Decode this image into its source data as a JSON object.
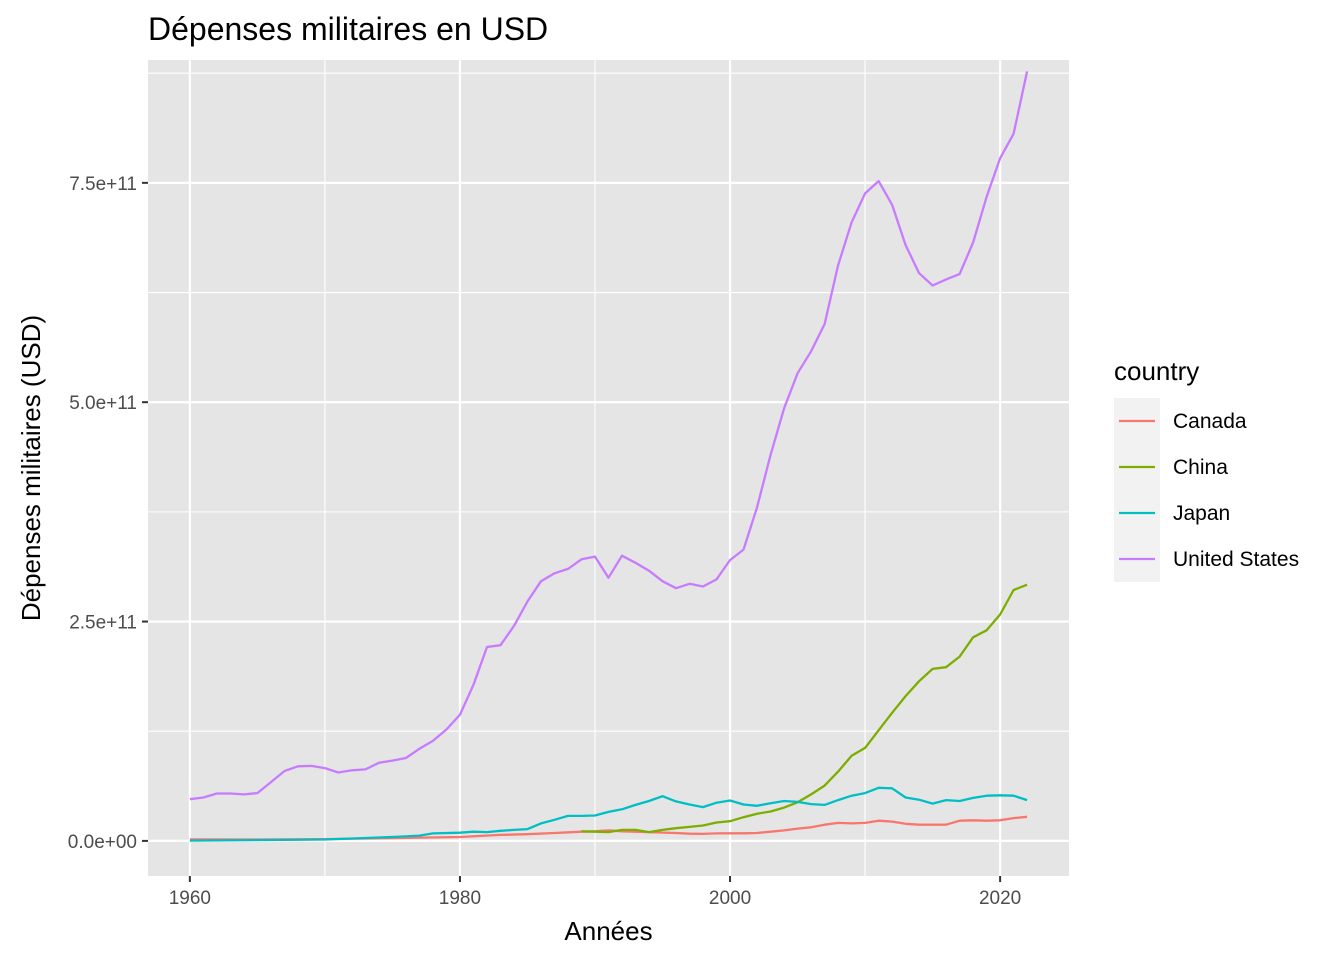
{
  "chart_data": {
    "type": "line",
    "title": "Dépenses militaires en USD",
    "xlabel": "Années",
    "ylabel": "Dépenses militaires (USD)",
    "xlim": [
      1956.9,
      2025.1
    ],
    "ylim": [
      -40000000000,
      890000000000
    ],
    "x_ticks": [
      1960,
      1980,
      2000,
      2020
    ],
    "x_tick_labels": [
      "1960",
      "1980",
      "2000",
      "2020"
    ],
    "x_minor_ticks": [
      1970,
      1990,
      2010
    ],
    "y_ticks": [
      0,
      250000000000,
      500000000000,
      750000000000
    ],
    "y_tick_labels": [
      "0.0e+00",
      "2.5e+11",
      "5.0e+11",
      "7.5e+11"
    ],
    "y_minor_ticks": [
      125000000000,
      375000000000,
      625000000000,
      875000000000
    ],
    "grid": true,
    "legend_title": "country",
    "legend_position": "right",
    "background": "#e5e5e5",
    "series": [
      {
        "name": "Canada",
        "color": "#f8766d",
        "points": [
          [
            1960,
            1700000000.0
          ],
          [
            1965,
            1600000000.0
          ],
          [
            1970,
            2000000000.0
          ],
          [
            1975,
            3200000000.0
          ],
          [
            1980,
            4400000000.0
          ],
          [
            1983,
            6800000000.0
          ],
          [
            1985,
            7600000000.0
          ],
          [
            1987,
            9000000000.0
          ],
          [
            1989,
            10500000000.0
          ],
          [
            1990,
            11000000000.0
          ],
          [
            1991,
            12000000000.0
          ],
          [
            1992,
            11000000000.0
          ],
          [
            1993,
            10500000000.0
          ],
          [
            1994,
            10000000000.0
          ],
          [
            1995,
            9500000000.0
          ],
          [
            1996,
            9000000000.0
          ],
          [
            1997,
            8200000000.0
          ],
          [
            1998,
            8000000000.0
          ],
          [
            1999,
            8500000000.0
          ],
          [
            2000,
            8700000000.0
          ],
          [
            2001,
            8700000000.0
          ],
          [
            2002,
            9000000000.0
          ],
          [
            2003,
            10500000000.0
          ],
          [
            2004,
            12000000000.0
          ],
          [
            2005,
            14000000000.0
          ],
          [
            2006,
            15500000000.0
          ],
          [
            2007,
            18500000000.0
          ],
          [
            2008,
            20500000000.0
          ],
          [
            2009,
            20000000000.0
          ],
          [
            2010,
            20500000000.0
          ],
          [
            2011,
            23000000000.0
          ],
          [
            2012,
            22000000000.0
          ],
          [
            2013,
            19500000000.0
          ],
          [
            2014,
            18500000000.0
          ],
          [
            2015,
            18500000000.0
          ],
          [
            2016,
            18500000000.0
          ],
          [
            2017,
            23000000000.0
          ],
          [
            2018,
            23500000000.0
          ],
          [
            2019,
            23000000000.0
          ],
          [
            2020,
            23500000000.0
          ],
          [
            2021,
            26000000000.0
          ],
          [
            2022,
            27500000000.0
          ]
        ]
      },
      {
        "name": "China",
        "color": "#7cae00",
        "points": [
          [
            1989,
            11000000000.0
          ],
          [
            1990,
            10500000000.0
          ],
          [
            1991,
            10000000000.0
          ],
          [
            1992,
            12500000000.0
          ],
          [
            1993,
            12500000000.0
          ],
          [
            1994,
            10000000000.0
          ],
          [
            1995,
            12500000000.0
          ],
          [
            1996,
            14500000000.0
          ],
          [
            1997,
            16000000000.0
          ],
          [
            1998,
            17500000000.0
          ],
          [
            1999,
            21000000000.0
          ],
          [
            2000,
            22500000000.0
          ],
          [
            2001,
            27000000000.0
          ],
          [
            2002,
            31000000000.0
          ],
          [
            2003,
            33500000000.0
          ],
          [
            2004,
            38000000000.0
          ],
          [
            2005,
            44000000000.0
          ],
          [
            2006,
            53000000000.0
          ],
          [
            2007,
            63000000000.0
          ],
          [
            2008,
            79000000000.0
          ],
          [
            2009,
            97000000000.0
          ],
          [
            2010,
            106000000000.0
          ],
          [
            2011,
            126000000000.0
          ],
          [
            2012,
            146000000000.0
          ],
          [
            2013,
            165000000000.0
          ],
          [
            2014,
            182000000000.0
          ],
          [
            2015,
            196000000000.0
          ],
          [
            2016,
            198000000000.0
          ],
          [
            2017,
            210000000000.0
          ],
          [
            2018,
            232000000000.0
          ],
          [
            2019,
            240000000000.0
          ],
          [
            2020,
            258000000000.0
          ],
          [
            2021,
            286000000000.0
          ],
          [
            2022,
            292000000000.0
          ]
        ]
      },
      {
        "name": "Japan",
        "color": "#00bfc4",
        "points": [
          [
            1960,
            400000000.0
          ],
          [
            1965,
            900000000.0
          ],
          [
            1970,
            1600000000.0
          ],
          [
            1975,
            4500000000.0
          ],
          [
            1977,
            6000000000.0
          ],
          [
            1978,
            8500000000.0
          ],
          [
            1980,
            9300000000.0
          ],
          [
            1981,
            10500000000.0
          ],
          [
            1982,
            10000000000.0
          ],
          [
            1983,
            11500000000.0
          ],
          [
            1984,
            12500000000.0
          ],
          [
            1985,
            13500000000.0
          ],
          [
            1986,
            20000000000.0
          ],
          [
            1987,
            24000000000.0
          ],
          [
            1988,
            28500000000.0
          ],
          [
            1989,
            28500000000.0
          ],
          [
            1990,
            29000000000.0
          ],
          [
            1991,
            33000000000.0
          ],
          [
            1992,
            36000000000.0
          ],
          [
            1993,
            41000000000.0
          ],
          [
            1994,
            45500000000.0
          ],
          [
            1995,
            51000000000.0
          ],
          [
            1996,
            45000000000.0
          ],
          [
            1997,
            41500000000.0
          ],
          [
            1998,
            38500000000.0
          ],
          [
            1999,
            43500000000.0
          ],
          [
            2000,
            46000000000.0
          ],
          [
            2001,
            41500000000.0
          ],
          [
            2002,
            40000000000.0
          ],
          [
            2003,
            43000000000.0
          ],
          [
            2004,
            45500000000.0
          ],
          [
            2005,
            44500000000.0
          ],
          [
            2006,
            42000000000.0
          ],
          [
            2007,
            41000000000.0
          ],
          [
            2008,
            46500000000.0
          ],
          [
            2009,
            51500000000.0
          ],
          [
            2010,
            54500000000.0
          ],
          [
            2011,
            60500000000.0
          ],
          [
            2012,
            60000000000.0
          ],
          [
            2013,
            49500000000.0
          ],
          [
            2014,
            47000000000.0
          ],
          [
            2015,
            42500000000.0
          ],
          [
            2016,
            46500000000.0
          ],
          [
            2017,
            45500000000.0
          ],
          [
            2018,
            49000000000.0
          ],
          [
            2019,
            51500000000.0
          ],
          [
            2020,
            52000000000.0
          ],
          [
            2021,
            51500000000.0
          ],
          [
            2022,
            46500000000.0
          ]
        ]
      },
      {
        "name": "United States",
        "color": "#c77cff",
        "points": [
          [
            1960,
            47500000000.0
          ],
          [
            1961,
            49500000000.0
          ],
          [
            1962,
            54000000000.0
          ],
          [
            1963,
            54000000000.0
          ],
          [
            1964,
            53000000000.0
          ],
          [
            1965,
            54500000000.0
          ],
          [
            1966,
            67000000000.0
          ],
          [
            1967,
            79500000000.0
          ],
          [
            1968,
            85000000000.0
          ],
          [
            1969,
            85500000000.0
          ],
          [
            1970,
            83000000000.0
          ],
          [
            1971,
            78000000000.0
          ],
          [
            1972,
            80500000000.0
          ],
          [
            1973,
            81500000000.0
          ],
          [
            1974,
            89000000000.0
          ],
          [
            1975,
            91500000000.0
          ],
          [
            1976,
            94500000000.0
          ],
          [
            1977,
            105000000000.0
          ],
          [
            1978,
            114000000000.0
          ],
          [
            1979,
            127000000000.0
          ],
          [
            1980,
            144000000000.0
          ],
          [
            1981,
            178000000000.0
          ],
          [
            1982,
            221000000000.0
          ],
          [
            1983,
            223000000000.0
          ],
          [
            1984,
            245000000000.0
          ],
          [
            1985,
            273000000000.0
          ],
          [
            1986,
            296000000000.0
          ],
          [
            1987,
            305000000000.0
          ],
          [
            1988,
            310000000000.0
          ],
          [
            1989,
            321000000000.0
          ],
          [
            1990,
            324000000000.0
          ],
          [
            1991,
            300000000000.0
          ],
          [
            1992,
            325000000000.0
          ],
          [
            1993,
            317000000000.0
          ],
          [
            1994,
            308000000000.0
          ],
          [
            1995,
            296000000000.0
          ],
          [
            1996,
            288000000000.0
          ],
          [
            1997,
            293000000000.0
          ],
          [
            1998,
            290000000000.0
          ],
          [
            1999,
            298000000000.0
          ],
          [
            2000,
            320000000000.0
          ],
          [
            2001,
            332000000000.0
          ],
          [
            2002,
            380000000000.0
          ],
          [
            2003,
            440000000000.0
          ],
          [
            2004,
            493000000000.0
          ],
          [
            2005,
            533000000000.0
          ],
          [
            2006,
            558000000000.0
          ],
          [
            2007,
            589000000000.0
          ],
          [
            2008,
            656000000000.0
          ],
          [
            2009,
            705000000000.0
          ],
          [
            2010,
            738000000000.0
          ],
          [
            2011,
            752000000000.0
          ],
          [
            2012,
            725000000000.0
          ],
          [
            2013,
            679000000000.0
          ],
          [
            2014,
            647000000000.0
          ],
          [
            2015,
            633000000000.0
          ],
          [
            2016,
            640000000000.0
          ],
          [
            2017,
            646000000000.0
          ],
          [
            2018,
            682000000000.0
          ],
          [
            2019,
            734000000000.0
          ],
          [
            2020,
            778000000000.0
          ],
          [
            2021,
            806000000000.0
          ],
          [
            2022,
            877000000000.0
          ]
        ]
      }
    ]
  }
}
